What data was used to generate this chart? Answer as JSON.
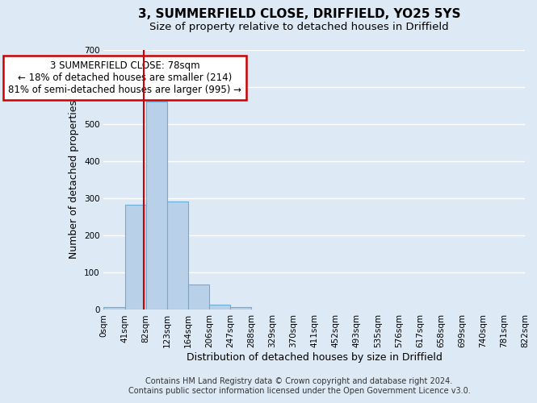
{
  "title": "3, SUMMERFIELD CLOSE, DRIFFIELD, YO25 5YS",
  "subtitle": "Size of property relative to detached houses in Driffield",
  "xlabel": "Distribution of detached houses by size in Driffield",
  "ylabel": "Number of detached properties",
  "bar_edges": [
    0,
    41,
    82,
    123,
    164,
    206,
    247,
    288,
    329,
    370,
    411,
    452,
    493,
    535,
    576,
    617,
    658,
    699,
    740,
    781,
    822
  ],
  "bar_heights": [
    7,
    282,
    560,
    292,
    68,
    14,
    8,
    0,
    0,
    0,
    0,
    0,
    0,
    0,
    0,
    0,
    0,
    0,
    0,
    0
  ],
  "bar_color": "#b8d0e8",
  "bar_edge_color": "#6baed6",
  "ylim": [
    0,
    700
  ],
  "yticks": [
    0,
    100,
    200,
    300,
    400,
    500,
    600,
    700
  ],
  "xtick_labels": [
    "0sqm",
    "41sqm",
    "82sqm",
    "123sqm",
    "164sqm",
    "206sqm",
    "247sqm",
    "288sqm",
    "329sqm",
    "370sqm",
    "411sqm",
    "452sqm",
    "493sqm",
    "535sqm",
    "576sqm",
    "617sqm",
    "658sqm",
    "699sqm",
    "740sqm",
    "781sqm",
    "822sqm"
  ],
  "vline_x": 78,
  "vline_color": "#cc0000",
  "annotation_title": "3 SUMMERFIELD CLOSE: 78sqm",
  "annotation_line1": "← 18% of detached houses are smaller (214)",
  "annotation_line2": "81% of semi-detached houses are larger (995) →",
  "annotation_box_color": "#ffffff",
  "annotation_box_edge_color": "#cc0000",
  "footer1": "Contains HM Land Registry data © Crown copyright and database right 2024.",
  "footer2": "Contains public sector information licensed under the Open Government Licence v3.0.",
  "bg_color": "#dde9f5",
  "plot_bg_color": "#dde9f5",
  "grid_color": "#ffffff",
  "title_fontsize": 11,
  "subtitle_fontsize": 9.5,
  "label_fontsize": 9,
  "tick_fontsize": 7.5,
  "footer_fontsize": 7
}
